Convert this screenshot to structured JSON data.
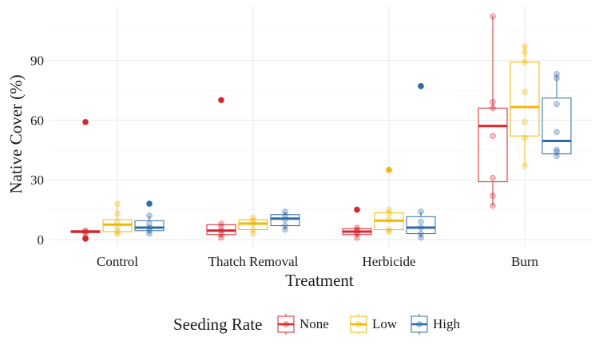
{
  "chart_data": {
    "type": "box",
    "xlabel": "Treatment",
    "ylabel": "Native Cover (%)",
    "categories": [
      "Control",
      "Thatch Removal",
      "Herbicide",
      "Burn"
    ],
    "yticks": [
      0,
      30,
      60,
      90
    ],
    "ylim": [
      -4,
      117
    ],
    "grid": true,
    "legend": {
      "title": "Seeding Rate",
      "position": "bottom"
    },
    "series": [
      {
        "name": "None",
        "color": "#D7262F",
        "boxes": [
          {
            "q1": 3.5,
            "median": 4,
            "q3": 4.5,
            "lower": 3,
            "upper": 5,
            "points": [
              0.5,
              1,
              3.5,
              4,
              4.5
            ],
            "outliers": [
              0.5,
              59
            ]
          },
          {
            "q1": 2.5,
            "median": 4.5,
            "q3": 7.5,
            "lower": 1,
            "upper": 8,
            "points": [
              1,
              2.5,
              4.5,
              6.5,
              8
            ],
            "outliers": [
              70
            ]
          },
          {
            "q1": 2.5,
            "median": 4,
            "q3": 5.5,
            "lower": 1,
            "upper": 6,
            "points": [
              1,
              3,
              4,
              5,
              6
            ],
            "outliers": [
              15
            ]
          },
          {
            "q1": 29,
            "median": 57,
            "q3": 66,
            "lower": 17,
            "upper": 112,
            "points": [
              17,
              22,
              31,
              52,
              66,
              69,
              112
            ],
            "outliers": []
          }
        ]
      },
      {
        "name": "Low",
        "color": "#F2B705",
        "boxes": [
          {
            "q1": 4,
            "median": 7.5,
            "q3": 10,
            "lower": 3,
            "upper": 18,
            "points": [
              3,
              4,
              6,
              9,
              13,
              18
            ],
            "outliers": []
          },
          {
            "q1": 5,
            "median": 8,
            "q3": 10,
            "lower": 3,
            "upper": 11,
            "points": [
              3,
              5,
              8,
              9.5,
              11
            ],
            "outliers": []
          },
          {
            "q1": 5,
            "median": 9.5,
            "q3": 13.5,
            "lower": 4,
            "upper": 15,
            "points": [
              4,
              5,
              10,
              13,
              15
            ],
            "outliers": [
              35
            ]
          },
          {
            "q1": 52,
            "median": 66.5,
            "q3": 89,
            "lower": 37,
            "upper": 97,
            "points": [
              37,
              51,
              59,
              74,
              89,
              94,
              97
            ],
            "outliers": []
          }
        ]
      },
      {
        "name": "High",
        "color": "#2F6BA8",
        "boxes": [
          {
            "q1": 4.5,
            "median": 6,
            "q3": 9.5,
            "lower": 3,
            "upper": 12,
            "points": [
              3,
              4.5,
              6,
              8,
              12
            ],
            "outliers": [
              18
            ]
          },
          {
            "q1": 7,
            "median": 10.5,
            "q3": 12.5,
            "lower": 5,
            "upper": 14,
            "points": [
              5,
              7,
              10,
              12,
              14
            ],
            "outliers": []
          },
          {
            "q1": 3,
            "median": 6,
            "q3": 11.5,
            "lower": 1,
            "upper": 14,
            "points": [
              1,
              3,
              6,
              9,
              14
            ],
            "outliers": [
              77
            ]
          },
          {
            "q1": 43,
            "median": 49.5,
            "q3": 71,
            "lower": 42,
            "upper": 83,
            "points": [
              42,
              44,
              45,
              54,
              68,
              81,
              83
            ],
            "outliers": []
          }
        ]
      }
    ]
  }
}
